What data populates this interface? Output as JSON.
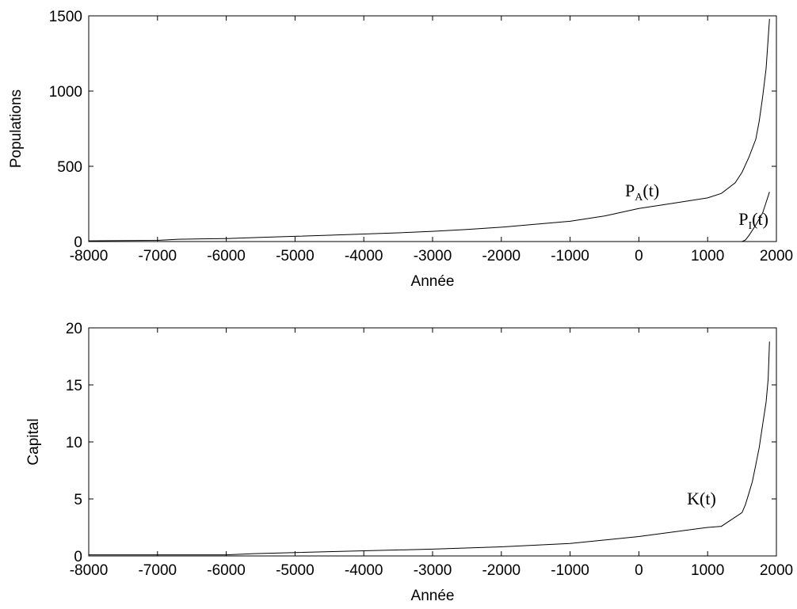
{
  "chart_data": [
    {
      "type": "line",
      "xlabel": "Année",
      "ylabel": "Populations",
      "xlim": [
        -8000,
        2000
      ],
      "ylim": [
        0,
        1500
      ],
      "xticks": [
        -8000,
        -7000,
        -6000,
        -5000,
        -4000,
        -3000,
        -2000,
        -1000,
        0,
        1000,
        2000
      ],
      "yticks": [
        0,
        500,
        1000,
        1500
      ],
      "grid": false,
      "series": [
        {
          "x": [
            -8000,
            -7000,
            -6700,
            -6000,
            -5500,
            -5000,
            -4500,
            -4000,
            -3500,
            -3000,
            -2500,
            -2000,
            -1500,
            -1000,
            -500,
            0,
            500,
            1000,
            1200,
            1400,
            1500,
            1600,
            1700,
            1750,
            1800,
            1850,
            1900
          ],
          "y": [
            5,
            8,
            15,
            20,
            28,
            35,
            42,
            50,
            58,
            68,
            80,
            95,
            115,
            135,
            170,
            220,
            255,
            290,
            320,
            390,
            460,
            560,
            680,
            800,
            960,
            1150,
            1480
          ]
        },
        {
          "x": [
            -8000,
            1500,
            1550,
            1600,
            1700,
            1800,
            1850,
            1900
          ],
          "y": [
            0,
            0,
            10,
            40,
            110,
            190,
            260,
            330
          ]
        }
      ],
      "annotations": [
        {
          "main": "P",
          "sub": "A",
          "suffix": "(t)",
          "x": -200,
          "y": 300
        },
        {
          "main": "P",
          "sub": "I",
          "suffix": "(t)",
          "x": 1450,
          "y": 110
        }
      ]
    },
    {
      "type": "line",
      "xlabel": "Année",
      "ylabel": "Capital",
      "xlim": [
        -8000,
        2000
      ],
      "ylim": [
        0,
        20
      ],
      "xticks": [
        -8000,
        -7000,
        -6000,
        -5000,
        -4000,
        -3000,
        -2000,
        -1000,
        0,
        1000,
        2000
      ],
      "yticks": [
        0,
        5,
        10,
        15,
        20
      ],
      "grid": false,
      "series": [
        {
          "x": [
            -8000,
            -6000,
            -5600,
            -5000,
            -4000,
            -3000,
            -2000,
            -1000,
            0,
            1000,
            1200,
            1300,
            1500,
            1550,
            1600,
            1650,
            1700,
            1750,
            1800,
            1850,
            1880,
            1900
          ],
          "y": [
            0.1,
            0.1,
            0.2,
            0.3,
            0.45,
            0.6,
            0.8,
            1.1,
            1.7,
            2.5,
            2.6,
            3.0,
            3.8,
            4.5,
            5.5,
            6.5,
            8.0,
            9.5,
            11.5,
            13.5,
            15.5,
            18.8
          ]
        }
      ],
      "annotations": [
        {
          "main": "K",
          "sub": "",
          "suffix": "(t)",
          "x": 700,
          "y": 4.5
        }
      ]
    }
  ]
}
